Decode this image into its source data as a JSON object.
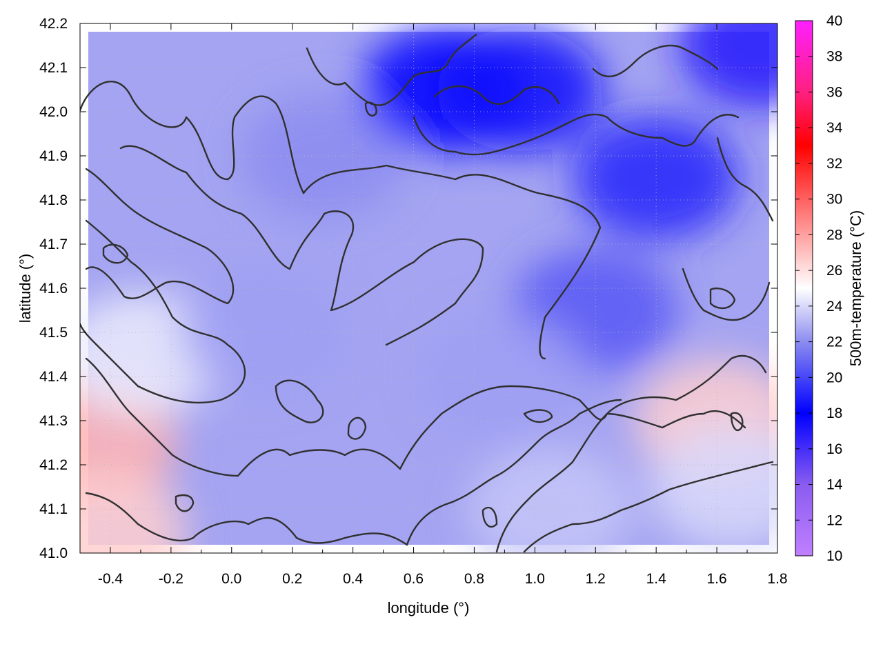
{
  "chart_data": {
    "type": "heatmap",
    "title": "",
    "xlabel": "longitude (°)",
    "ylabel": "latitude (°)",
    "colorbar_label": "500m-temperature (°C)",
    "xlim": [
      -0.5,
      1.8
    ],
    "ylim": [
      41.0,
      42.2
    ],
    "x_ticks": [
      -0.4,
      -0.2,
      0.0,
      0.2,
      0.4,
      0.6,
      0.8,
      1.0,
      1.2,
      1.4,
      1.6,
      1.8
    ],
    "x_tick_labels": [
      "-0.4",
      "-0.2",
      "0.0",
      "0.2",
      "0.4",
      "0.6",
      "0.8",
      "1.0",
      "1.2",
      "1.4",
      "1.6",
      "1.8"
    ],
    "y_ticks": [
      41.0,
      41.1,
      41.2,
      41.3,
      41.4,
      41.5,
      41.6,
      41.7,
      41.8,
      41.9,
      42.0,
      42.1,
      42.2
    ],
    "y_tick_labels": [
      "41.0",
      "41.1",
      "41.2",
      "41.3",
      "41.4",
      "41.5",
      "41.6",
      "41.7",
      "41.8",
      "41.9",
      "42.0",
      "42.1",
      "42.2"
    ],
    "colorbar_range": [
      10,
      40
    ],
    "colorbar_ticks": [
      10,
      12,
      14,
      16,
      18,
      20,
      22,
      24,
      26,
      28,
      30,
      32,
      34,
      36,
      38,
      40
    ],
    "colorbar_tick_labels": [
      "10",
      "12",
      "14",
      "16",
      "18",
      "20",
      "22",
      "24",
      "26",
      "28",
      "30",
      "32",
      "34",
      "36",
      "38",
      "40"
    ],
    "colormap": [
      {
        "value": 10,
        "color": "#c080ff"
      },
      {
        "value": 14,
        "color": "#8a5cf0"
      },
      {
        "value": 18,
        "color": "#0000ff"
      },
      {
        "value": 22,
        "color": "#8c8cf0"
      },
      {
        "value": 25,
        "color": "#ffffff"
      },
      {
        "value": 29,
        "color": "#ff8080"
      },
      {
        "value": 33,
        "color": "#ff0000"
      },
      {
        "value": 36,
        "color": "#ff2080"
      },
      {
        "value": 40,
        "color": "#ff20ff"
      }
    ],
    "field_samples": [
      {
        "lon": -0.45,
        "lat": 41.25,
        "value": 27.5
      },
      {
        "lon": -0.42,
        "lat": 41.05,
        "value": 26.5
      },
      {
        "lon": -0.3,
        "lat": 41.45,
        "value": 24.5
      },
      {
        "lon": 0.1,
        "lat": 41.5,
        "value": 22.5
      },
      {
        "lon": 0.3,
        "lat": 41.9,
        "value": 22.0
      },
      {
        "lon": 0.7,
        "lat": 42.05,
        "value": 18.0
      },
      {
        "lon": 0.95,
        "lat": 42.05,
        "value": 17.5
      },
      {
        "lon": 1.4,
        "lat": 41.85,
        "value": 19.0
      },
      {
        "lon": 1.2,
        "lat": 41.55,
        "value": 20.5
      },
      {
        "lon": 0.9,
        "lat": 41.4,
        "value": 22.5
      },
      {
        "lon": 1.05,
        "lat": 41.1,
        "value": 23.5
      },
      {
        "lon": 1.6,
        "lat": 41.3,
        "value": 26.5
      },
      {
        "lon": 1.65,
        "lat": 41.15,
        "value": 24.0
      },
      {
        "lon": 1.75,
        "lat": 42.15,
        "value": 17.0
      }
    ],
    "grid": true,
    "contours": true
  }
}
